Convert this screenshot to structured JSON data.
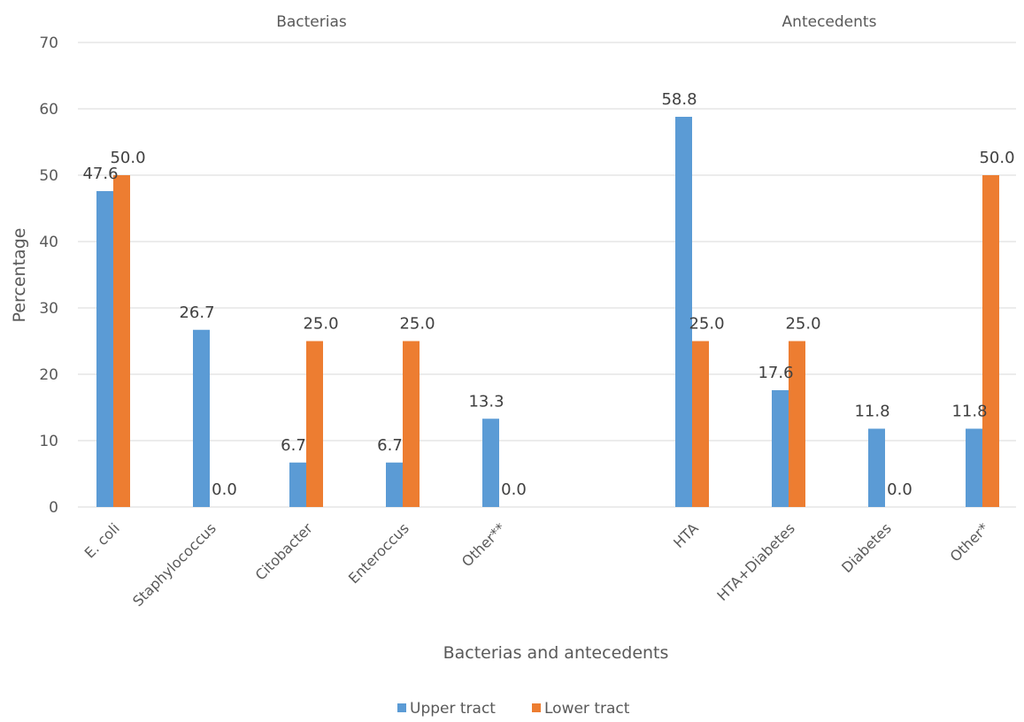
{
  "chart_data": {
    "type": "bar",
    "ylabel": "Percentage",
    "xlabel": "Bacterias and antecedents",
    "ylim": [
      0,
      70
    ],
    "yticks": [
      0,
      10,
      20,
      30,
      40,
      50,
      60,
      70
    ],
    "grid": true,
    "legend_position": "bottom",
    "groups": [
      {
        "label": "Bacterias",
        "categories": [
          "E. coli",
          "Staphylococcus",
          "Citobacter",
          "Enteroccus",
          "Other**"
        ]
      },
      {
        "label": "Antecedents",
        "categories": [
          "HTA",
          "HTA+Diabetes",
          "Diabetes",
          "Other*"
        ]
      }
    ],
    "categories": [
      "E. coli",
      "Staphylococcus",
      "Citobacter",
      "Enteroccus",
      "Other**",
      "HTA",
      "HTA+Diabetes",
      "Diabetes",
      "Other*"
    ],
    "series": [
      {
        "name": "Upper tract",
        "color": "#5B9BD5",
        "values": [
          47.6,
          26.7,
          6.7,
          6.7,
          13.3,
          58.8,
          17.6,
          11.8,
          11.8
        ],
        "labels": [
          "47.6",
          "26.7",
          "6.7",
          "6.7",
          "13.3",
          "58.8",
          "17.6",
          "11.8",
          "11.8"
        ]
      },
      {
        "name": "Lower tract",
        "color": "#ED7D31",
        "values": [
          50.0,
          0.0,
          25.0,
          25.0,
          0.0,
          25.0,
          25.0,
          0.0,
          50.0
        ],
        "labels": [
          "50.0",
          "0.0",
          "25.0",
          "25.0",
          "0.0",
          "25.0",
          "25.0",
          "0.0",
          "50.0"
        ]
      }
    ]
  }
}
